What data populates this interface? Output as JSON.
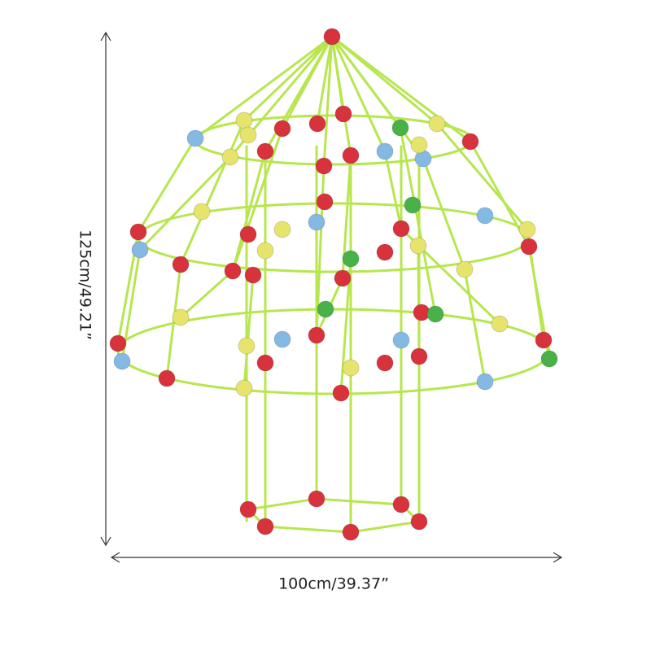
{
  "dimensions": {
    "height_label": "125cm/49.21”",
    "width_label": "100cm/39.37”"
  }
}
